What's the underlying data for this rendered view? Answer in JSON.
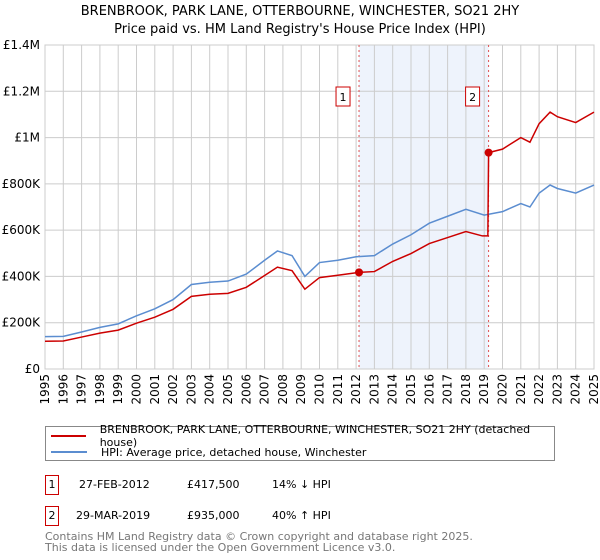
{
  "title": "BRENBROOK, PARK LANE, OTTERBOURNE, WINCHESTER, SO21 2HY",
  "subtitle": "Price paid vs. HM Land Registry's House Price Index (HPI)",
  "chart_data": {
    "type": "line",
    "title": "BRENBROOK, PARK LANE, OTTERBOURNE, WINCHESTER, SO21 2HY — Price paid vs. HM Land Registry's House Price Index (HPI)",
    "xlim": [
      1995,
      2025
    ],
    "ylim": [
      0,
      1400000
    ],
    "x_ticks": [
      "1995",
      "1996",
      "1997",
      "1998",
      "1999",
      "2000",
      "2001",
      "2002",
      "2003",
      "2004",
      "2005",
      "2006",
      "2007",
      "2008",
      "2009",
      "2010",
      "2011",
      "2012",
      "2013",
      "2014",
      "2015",
      "2016",
      "2017",
      "2018",
      "2019",
      "2020",
      "2021",
      "2022",
      "2023",
      "2024",
      "2025"
    ],
    "y_ticks": [
      {
        "v": 0,
        "label": "£0"
      },
      {
        "v": 200000,
        "label": "£200K"
      },
      {
        "v": 400000,
        "label": "£400K"
      },
      {
        "v": 600000,
        "label": "£600K"
      },
      {
        "v": 800000,
        "label": "£800K"
      },
      {
        "v": 1000000,
        "label": "£1M"
      },
      {
        "v": 1200000,
        "label": "£1.2M"
      },
      {
        "v": 1400000,
        "label": "£1.4M"
      }
    ],
    "grid": true,
    "series": [
      {
        "name": "BRENBROOK, PARK LANE, OTTERBOURNE, WINCHESTER, SO21 2HY (detached house)",
        "color": "#cc0000",
        "x": [
          1995,
          1996,
          1997,
          1998,
          1999,
          2000,
          2001,
          2002,
          2003,
          2004,
          2005,
          2006,
          2007,
          2007.7,
          2008.5,
          2009.2,
          2010,
          2011,
          2012.16,
          2013,
          2014,
          2015,
          2016,
          2017,
          2018,
          2018.9,
          2019.2,
          2019.24,
          2020,
          2021,
          2021.5,
          2022,
          2022.6,
          2023,
          2024,
          2025
        ],
        "y": [
          120000,
          121000,
          138000,
          155000,
          168000,
          198000,
          224000,
          258000,
          314000,
          323000,
          327000,
          353000,
          404000,
          440000,
          425000,
          345000,
          395000,
          405000,
          417500,
          421000,
          465000,
          499000,
          542000,
          568000,
          594000,
          575000,
          575000,
          935000,
          950000,
          1000000,
          980000,
          1060000,
          1110000,
          1090000,
          1065000,
          1110000
        ]
      },
      {
        "name": "HPI: Average price, detached house, Winchester",
        "color": "#5b8dd0",
        "x": [
          1995,
          1996,
          1997,
          1998,
          1999,
          2000,
          2001,
          2002,
          2003,
          2004,
          2005,
          2006,
          2007,
          2007.7,
          2008.5,
          2009.2,
          2010,
          2011,
          2012,
          2013,
          2014,
          2015,
          2016,
          2017,
          2018,
          2019,
          2020,
          2021,
          2021.5,
          2022,
          2022.6,
          2023,
          2024,
          2025
        ],
        "y": [
          140000,
          141000,
          160000,
          180000,
          195000,
          230000,
          260000,
          300000,
          365000,
          375000,
          380000,
          410000,
          470000,
          510000,
          490000,
          400000,
          460000,
          470000,
          485000,
          490000,
          540000,
          580000,
          630000,
          660000,
          690000,
          665000,
          680000,
          715000,
          700000,
          760000,
          795000,
          780000,
          760000,
          795000
        ]
      }
    ],
    "annotations": [
      {
        "label": "1",
        "date": "27-FEB-2012",
        "x": 2012.16,
        "price": "£417,500",
        "price_value": 417500,
        "hpi": "14% ↓ HPI"
      },
      {
        "label": "2",
        "date": "29-MAR-2019",
        "x": 2019.24,
        "price": "£935,000",
        "price_value": 935000,
        "hpi": "40% ↑ HPI"
      }
    ],
    "legend": "below"
  },
  "footer": [
    "Contains HM Land Registry data © Crown copyright and database right 2025.",
    "This data is licensed under the Open Government Licence v3.0."
  ]
}
